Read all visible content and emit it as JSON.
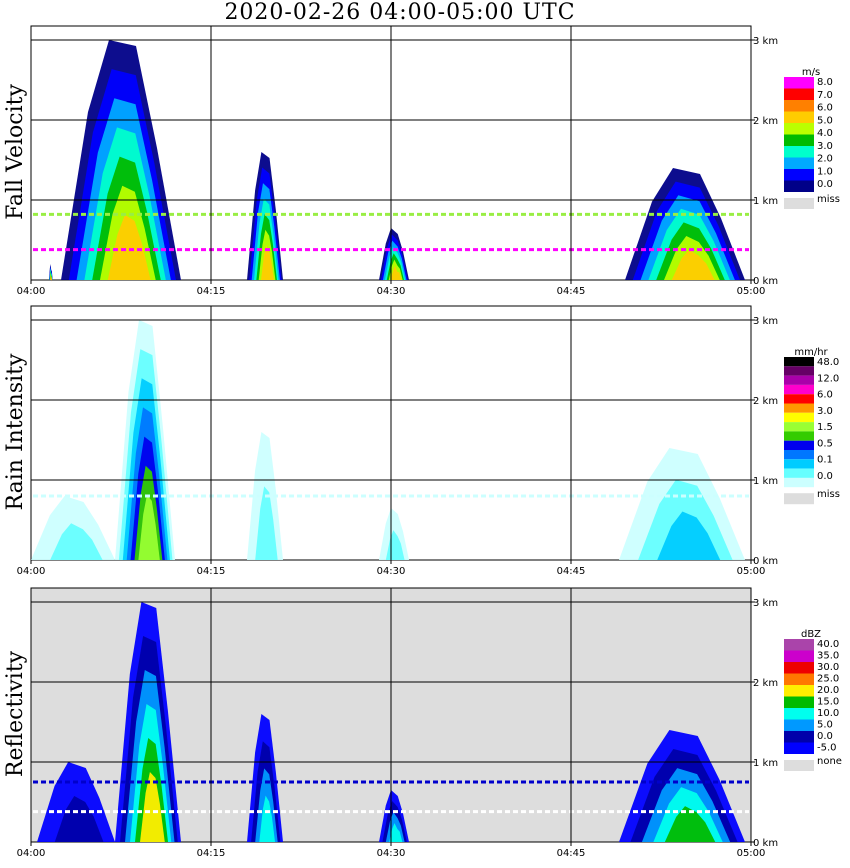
{
  "title": "2020-02-26   04:00-05:00 UTC",
  "chart_data": {
    "type": "heatmap",
    "x_ticks": [
      "04:00",
      "04:15",
      "04:30",
      "04:45",
      "05:00"
    ],
    "y_ticks": [
      "0 km",
      "1 km",
      "2 km",
      "3 km"
    ],
    "xlim_minutes": [
      0,
      60
    ],
    "ylim_km": [
      0,
      3
    ],
    "grid": true,
    "panels": [
      {
        "ylabel": "Fall Velocity",
        "background": "#ffffff",
        "colorbar": {
          "unit": "m/s",
          "labels": [
            "8.0",
            "7.0",
            "6.0",
            "5.0",
            "4.0",
            "3.0",
            "2.0",
            "1.0",
            "0.0"
          ],
          "colors": [
            "#ff00ff",
            "#ff0000",
            "#ff8000",
            "#ffcc00",
            "#bbff00",
            "#00bb00",
            "#00ffcc",
            "#00aaff",
            "#0000ff",
            "#000088"
          ],
          "miss_label": "miss",
          "miss_color": "#dddddd"
        },
        "echoes": [
          {
            "start": 1.5,
            "end": 1.8,
            "top": 0.2,
            "bottom": 0.0,
            "level": 8
          },
          {
            "start": 2.5,
            "end": 12.5,
            "top": 3.0,
            "bottom": 0.0,
            "level": 7
          },
          {
            "start": 18.0,
            "end": 21.0,
            "top": 1.6,
            "bottom": 0.0,
            "level": 7
          },
          {
            "start": 29.0,
            "end": 31.5,
            "top": 0.65,
            "bottom": 0.0,
            "level": 7
          },
          {
            "start": 49.5,
            "end": 59.5,
            "top": 1.4,
            "bottom": 0.0,
            "level": 7
          }
        ],
        "bands": [
          {
            "height_km": 0.38,
            "color": "#ff00ff"
          },
          {
            "height_km": 0.82,
            "color": "#99ee44"
          }
        ]
      },
      {
        "ylabel": "Rain Intensity",
        "background": "#ffffff",
        "colorbar": {
          "unit": "mm/hr",
          "labels": [
            "48.0",
            "12.0",
            "6.0",
            "3.0",
            "1.5",
            "0.5",
            "0.1",
            "0.0"
          ],
          "colors": [
            "#000000",
            "#660066",
            "#aa00aa",
            "#ff00cc",
            "#ff0000",
            "#ff9900",
            "#ffff00",
            "#99ff33",
            "#33cc00",
            "#0000ee",
            "#0077ff",
            "#00ccff",
            "#66ffff",
            "#ccffff"
          ],
          "miss_label": "miss",
          "miss_color": "#dddddd"
        },
        "echoes": [
          {
            "start": 0.0,
            "end": 7.0,
            "top": 0.8,
            "bottom": 0.0,
            "level": 1
          },
          {
            "start": 7.0,
            "end": 12.0,
            "top": 3.0,
            "bottom": 0.0,
            "level": 7
          },
          {
            "start": 18.0,
            "end": 21.0,
            "top": 1.6,
            "bottom": 0.0,
            "level": 1
          },
          {
            "start": 29.0,
            "end": 31.5,
            "top": 0.65,
            "bottom": 0.0,
            "level": 1
          },
          {
            "start": 49.0,
            "end": 59.5,
            "top": 1.4,
            "bottom": 0.0,
            "level": 3
          }
        ],
        "bands": [
          {
            "height_km": 0.8,
            "color": "#ccffff"
          }
        ]
      },
      {
        "ylabel": "Reflectivity",
        "background": "#dddddd",
        "colorbar": {
          "unit": "dBZ",
          "labels": [
            "40.0",
            "35.0",
            "30.0",
            "25.0",
            "20.0",
            "15.0",
            "10.0",
            "5.0",
            "0.0",
            "-5.0"
          ],
          "colors": [
            "#aa44aa",
            "#cc00cc",
            "#ee0000",
            "#ff7700",
            "#ffee00",
            "#00bb00",
            "#00ffee",
            "#0099ff",
            "#0000aa",
            "#0000ff"
          ],
          "miss_label": "none",
          "miss_color": "#dddddd"
        },
        "echoes": [
          {
            "start": 0.5,
            "end": 7.0,
            "top": 1.0,
            "bottom": 0.0,
            "level": 2
          },
          {
            "start": 7.0,
            "end": 12.5,
            "top": 3.0,
            "bottom": 0.0,
            "level": 6
          },
          {
            "start": 18.0,
            "end": 21.0,
            "top": 1.6,
            "bottom": 0.0,
            "level": 4
          },
          {
            "start": 29.0,
            "end": 31.5,
            "top": 0.65,
            "bottom": 0.0,
            "level": 4
          },
          {
            "start": 49.0,
            "end": 59.5,
            "top": 1.4,
            "bottom": 0.0,
            "level": 5
          }
        ],
        "bands": [
          {
            "height_km": 0.75,
            "color": "#0000cc"
          },
          {
            "height_km": 0.38,
            "color": "#ffffff"
          }
        ]
      }
    ]
  }
}
